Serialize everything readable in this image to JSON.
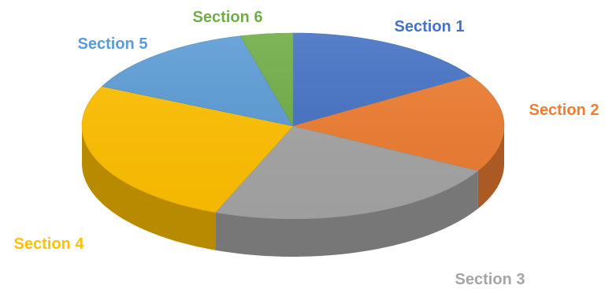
{
  "chart_data": {
    "type": "pie",
    "style": "3d",
    "title": "",
    "start_angle_deg": 0,
    "direction": "clockwise",
    "slices": [
      {
        "label": "Section 1",
        "value": 16,
        "color": "#4472C4"
      },
      {
        "label": "Section 2",
        "value": 17,
        "color": "#ED7D31"
      },
      {
        "label": "Section 3",
        "value": 23,
        "color": "#A5A5A5"
      },
      {
        "label": "Section 4",
        "value": 26,
        "color": "#FFC000"
      },
      {
        "label": "Section 5",
        "value": 14,
        "color": "#5B9BD5"
      },
      {
        "label": "Section 6",
        "value": 4,
        "color": "#70AD47"
      }
    ]
  }
}
